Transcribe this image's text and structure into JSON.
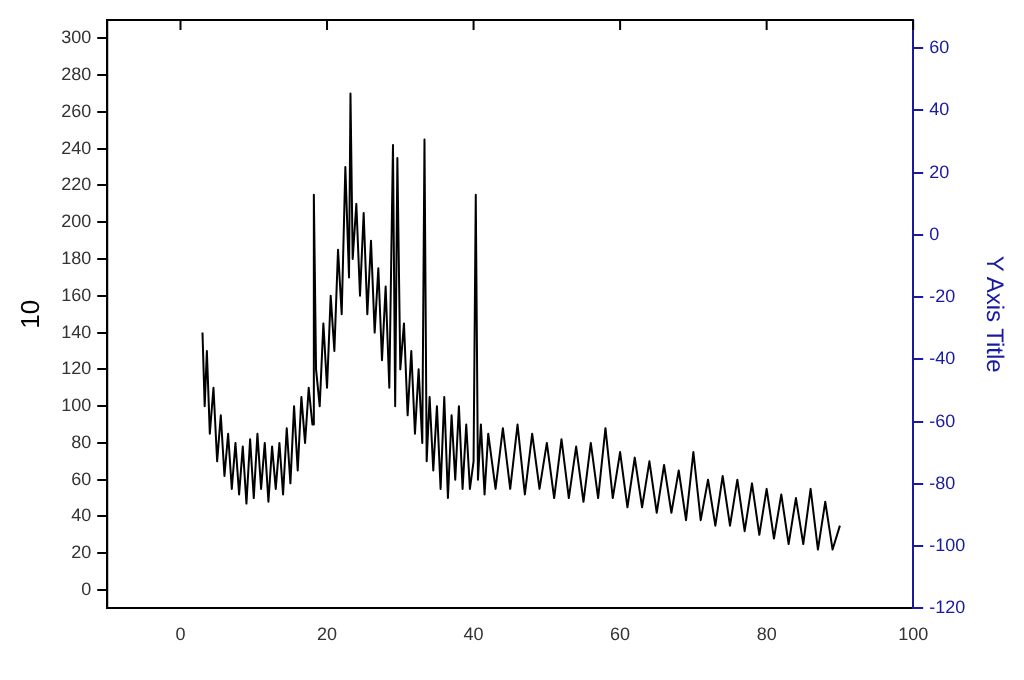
{
  "chart_data": {
    "type": "line",
    "ylabel": "10",
    "y2label": "Y Axis Title",
    "x": [
      3,
      3.3,
      3.6,
      4,
      4.5,
      5,
      5.5,
      6,
      6.5,
      7,
      7.5,
      8,
      8.5,
      9,
      9.5,
      10,
      10.5,
      11,
      11.5,
      12,
      12.5,
      13,
      13.5,
      14,
      14.5,
      15,
      15.5,
      16,
      16.5,
      17,
      17.5,
      18,
      18.2,
      18.5,
      19,
      19.5,
      20,
      20.5,
      21,
      21.5,
      22,
      22.5,
      23,
      23.2,
      23.5,
      24,
      24.5,
      25,
      25.5,
      26,
      26.5,
      27,
      27.5,
      28,
      28.5,
      29,
      29.3,
      29.6,
      30,
      30.5,
      31,
      31.5,
      32,
      32.5,
      33,
      33.3,
      33.6,
      34,
      34.5,
      35,
      35.5,
      36,
      36.5,
      37,
      37.5,
      38,
      38.5,
      39,
      39.5,
      40,
      40.3,
      40.6,
      41,
      41.5,
      42,
      43,
      44,
      45,
      46,
      47,
      48,
      49,
      50,
      51,
      52,
      53,
      54,
      55,
      56,
      57,
      58,
      59,
      60,
      61,
      62,
      63,
      64,
      65,
      66,
      67,
      68,
      69,
      70,
      71,
      72,
      73,
      74,
      75,
      76,
      77,
      78,
      79,
      80,
      81,
      82,
      83,
      84,
      85,
      86,
      87,
      88,
      89,
      90
    ],
    "series": [
      {
        "color": "#000000",
        "values": [
          140,
          100,
          130,
          85,
          110,
          70,
          95,
          62,
          85,
          55,
          80,
          52,
          78,
          47,
          82,
          50,
          85,
          55,
          80,
          48,
          78,
          55,
          80,
          52,
          88,
          58,
          100,
          65,
          105,
          80,
          110,
          90,
          215,
          120,
          100,
          145,
          110,
          160,
          130,
          185,
          150,
          230,
          170,
          270,
          180,
          210,
          160,
          205,
          150,
          190,
          140,
          175,
          125,
          165,
          110,
          242,
          100,
          235,
          120,
          145,
          95,
          130,
          85,
          120,
          80,
          245,
          70,
          105,
          65,
          100,
          55,
          105,
          50,
          95,
          60,
          100,
          55,
          90,
          55,
          70,
          215,
          60,
          90,
          52,
          85,
          55,
          88,
          55,
          90,
          52,
          85,
          55,
          80,
          50,
          82,
          50,
          78,
          48,
          80,
          50,
          88,
          50,
          75,
          45,
          72,
          45,
          70,
          42,
          68,
          42,
          65,
          38,
          75,
          38,
          60,
          35,
          62,
          35,
          60,
          32,
          58,
          30,
          55,
          28,
          52,
          25,
          50,
          25,
          55,
          22,
          48,
          22,
          35
        ]
      }
    ],
    "xlim": [
      -10,
      100
    ],
    "xticks": [
      0,
      20,
      40,
      60,
      80,
      100
    ],
    "ylim": [
      -10,
      310
    ],
    "yticks": [
      0,
      20,
      40,
      60,
      80,
      100,
      120,
      140,
      160,
      180,
      200,
      220,
      240,
      260,
      280,
      300
    ],
    "y2lim": [
      -120,
      69
    ],
    "y2ticks": [
      -120,
      -100,
      -80,
      -60,
      -40,
      -20,
      0,
      20,
      40,
      60
    ],
    "grid": false,
    "legend": false,
    "marker": "none",
    "line_style": "solid"
  }
}
